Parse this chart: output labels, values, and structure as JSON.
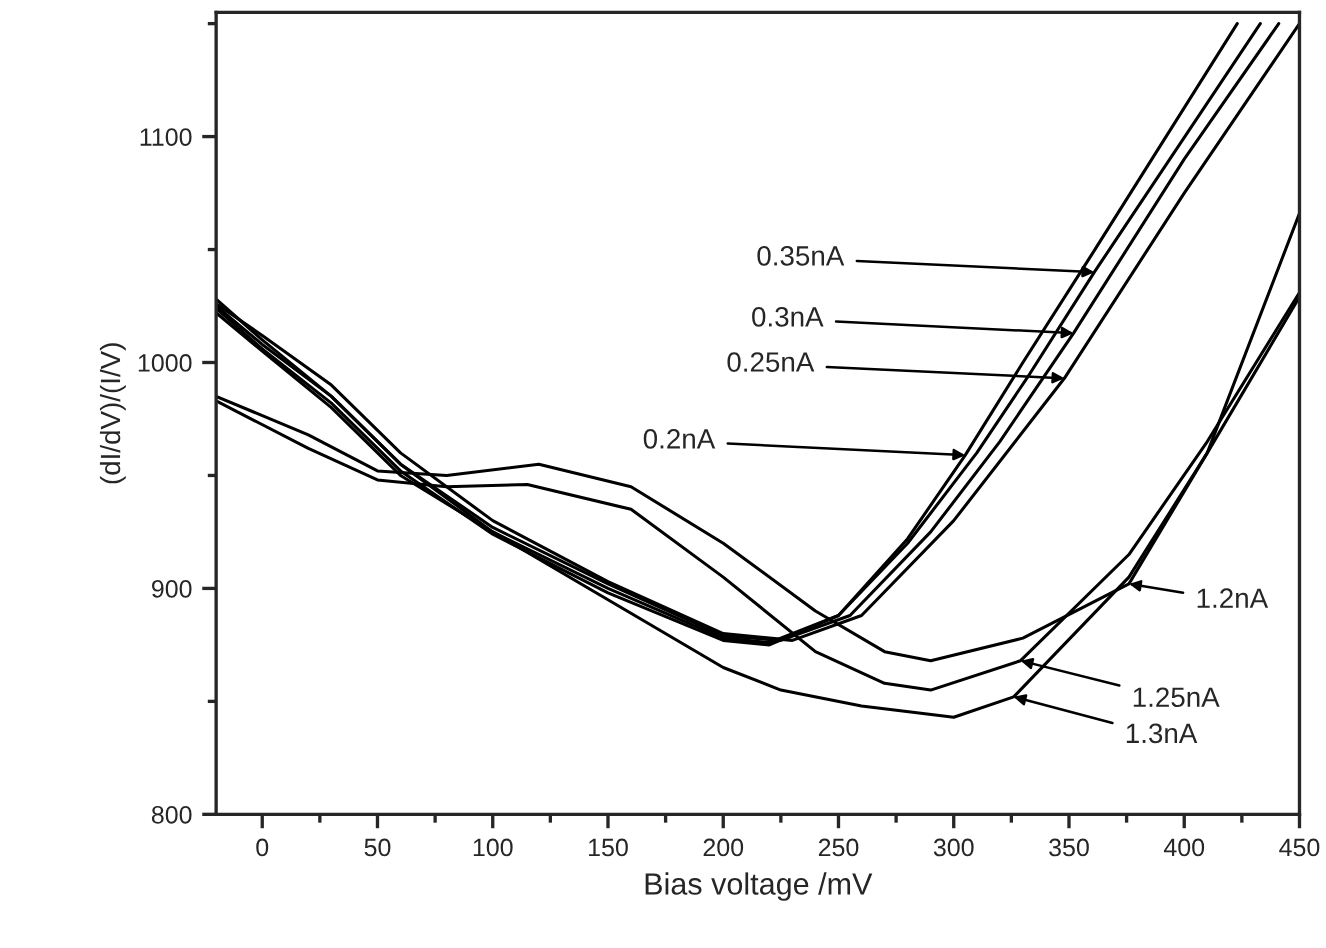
{
  "chart_data": {
    "type": "line",
    "xlabel": "Bias voltage /mV",
    "ylabel": "(dI/dV)/(I/V)",
    "xlim": [
      -20,
      450
    ],
    "ylim": [
      800,
      1155
    ],
    "xticks": [
      0,
      50,
      100,
      150,
      200,
      250,
      300,
      350,
      400,
      450
    ],
    "yticks": [
      800,
      900,
      1000,
      1100
    ],
    "grid": false,
    "legend": false,
    "marker": "none",
    "line_style": "solid",
    "series": [
      {
        "color": "#000000",
        "x": [
          -20,
          0,
          30,
          60,
          100,
          150,
          200,
          220,
          250,
          280,
          310,
          333,
          361,
          433
        ],
        "values": [
          1024,
          1006,
          982,
          952,
          924,
          898,
          877,
          875,
          888,
          920,
          960,
          995,
          1040,
          1150
        ]
      },
      {
        "color": "#000000",
        "x": [
          -20,
          0,
          30,
          60,
          100,
          150,
          200,
          225,
          255,
          290,
          320,
          352,
          400,
          441
        ],
        "values": [
          1025,
          1008,
          985,
          955,
          927,
          902,
          879,
          877,
          888,
          925,
          965,
          1013,
          1090,
          1150
        ]
      },
      {
        "color": "#000000",
        "x": [
          -20,
          0,
          30,
          60,
          100,
          150,
          200,
          230,
          260,
          300,
          348,
          400,
          450
        ],
        "values": [
          1026,
          1012,
          990,
          960,
          930,
          903,
          880,
          877,
          888,
          930,
          993,
          1075,
          1150
        ]
      },
      {
        "color": "#000000",
        "x": [
          -20,
          0,
          30,
          60,
          100,
          150,
          200,
          220,
          250,
          280,
          305,
          330,
          360,
          423
        ],
        "values": [
          1022,
          1005,
          980,
          950,
          925,
          900,
          878,
          876,
          888,
          922,
          959,
          1000,
          1048,
          1150
        ]
      },
      {
        "color": "#000000",
        "x": [
          -20,
          20,
          50,
          80,
          120,
          160,
          200,
          240,
          270,
          290,
          330,
          376,
          410,
          450
        ],
        "values": [
          985,
          968,
          952,
          950,
          955,
          945,
          920,
          890,
          872,
          868,
          878,
          902,
          960,
          1066
        ]
      },
      {
        "color": "#000000",
        "x": [
          -20,
          20,
          50,
          80,
          115,
          160,
          200,
          240,
          270,
          290,
          329,
          376,
          410,
          450
        ],
        "values": [
          983,
          962,
          948,
          945,
          946,
          935,
          905,
          872,
          858,
          855,
          868,
          915,
          965,
          1031
        ]
      },
      {
        "color": "#000000",
        "x": [
          -20,
          0,
          30,
          60,
          100,
          150,
          200,
          225,
          260,
          300,
          326,
          376,
          410,
          450
        ],
        "values": [
          1028,
          1010,
          985,
          955,
          925,
          895,
          865,
          855,
          848,
          843,
          852,
          905,
          960,
          1029
        ]
      }
    ],
    "annotations": [
      {
        "text": "0.35nA",
        "x": 361,
        "y": 1040
      },
      {
        "text": "0.3nA",
        "x": 352,
        "y": 1013
      },
      {
        "text": "0.25nA",
        "x": 348,
        "y": 993
      },
      {
        "text": "0.2nA",
        "x": 305,
        "y": 959
      },
      {
        "text": "1.2nA",
        "x": 376,
        "y": 902
      },
      {
        "text": "1.25nA",
        "x": 329,
        "y": 868
      },
      {
        "text": "1.3nA",
        "x": 326,
        "y": 852
      }
    ]
  }
}
